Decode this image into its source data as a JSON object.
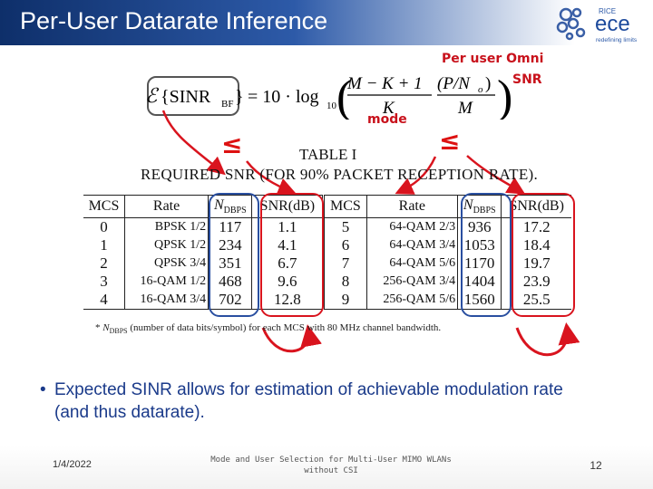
{
  "slide": {
    "title": "Per-User Datarate Inference",
    "logo": {
      "top_text": "RICE",
      "main_text": "ece",
      "tagline": "redefining   limits"
    }
  },
  "annotations": {
    "per_user": "Per user Omni",
    "snr": "SNR",
    "mode": "mode",
    "leq_left": "≤",
    "leq_right": "≤"
  },
  "formula": {
    "lhs_symbol": "ℰ",
    "lhs_arg": "{SINR",
    "lhs_sub": "BF",
    "lhs_close": "}",
    "equals": "= 10 · log",
    "log_sub": "10",
    "frac1_num": "M − K + 1",
    "frac1_den": "K",
    "frac2_num": "(P/N",
    "frac2_num_sub": "o",
    "frac2_num_close": ")",
    "frac2_den": "M"
  },
  "table": {
    "caption_line1": "TABLE I",
    "caption_line2": "REQUIRED SNR (FOR 90% PACKET RECEPTION RATE).",
    "headers": [
      "MCS",
      "Rate",
      "N",
      "SNR(dB)",
      "MCS",
      "Rate",
      "N",
      "SNR(dB)"
    ],
    "ndbps_sub": "DBPS",
    "rows": [
      [
        "0",
        "BPSK 1/2",
        "117",
        "1.1",
        "5",
        "64-QAM 2/3",
        "936",
        "17.2"
      ],
      [
        "1",
        "QPSK 1/2",
        "234",
        "4.1",
        "6",
        "64-QAM 3/4",
        "1053",
        "18.4"
      ],
      [
        "2",
        "QPSK 3/4",
        "351",
        "6.7",
        "7",
        "64-QAM 5/6",
        "1170",
        "19.7"
      ],
      [
        "3",
        "16-QAM 1/2",
        "468",
        "9.6",
        "8",
        "256-QAM 3/4",
        "1404",
        "23.9"
      ],
      [
        "4",
        "16-QAM 3/4",
        "702",
        "12.8",
        "9",
        "256-QAM 5/6",
        "1560",
        "25.5"
      ]
    ],
    "footnote_star": "*",
    "footnote_n": "N",
    "footnote_sub": "DBPS",
    "footnote_text": " (number of data bits/symbol) for each MCS with 80 MHz channel bandwidth."
  },
  "bullet": {
    "symbol": "•",
    "text": "Expected SINR allows for estimation of achievable modulation rate (and thus datarate)."
  },
  "footer": {
    "date": "1/4/2022",
    "title": "Mode and User Selection for Multi-User MIMO WLANs without CSI",
    "page": "12"
  },
  "colors": {
    "title_bar": "#0e2f6a",
    "annotation_red": "#c8111b",
    "oval_red": "#d9141e",
    "oval_blue": "#2a4fa0",
    "bullet_text": "#1a3a8a"
  }
}
